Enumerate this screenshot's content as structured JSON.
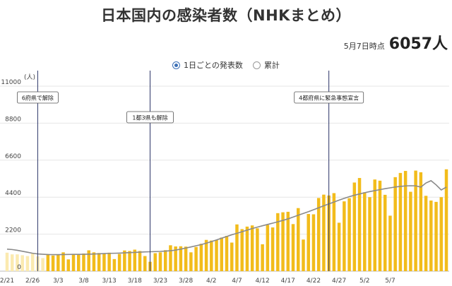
{
  "title": "日本国内の感染者数（NHKまとめ）",
  "stamp": {
    "date": "5月7日時点",
    "count": "6057人"
  },
  "toggle": {
    "daily": "1日ごとの発表数",
    "cumulative": "累計",
    "selected": "daily"
  },
  "colors": {
    "bar": "#f2bc1b",
    "bar_faded": "#fbeab0",
    "avg_line": "#8a8a8a",
    "annotation": "#2b3467"
  },
  "chart_data": {
    "type": "bar",
    "y_unit": "(人)",
    "ylim": [
      0,
      11000
    ],
    "yticks": [
      0,
      2200,
      4400,
      6600,
      8800,
      11000
    ],
    "grid": true,
    "x_ticks": [
      "2/21",
      "2/26",
      "3/3",
      "3/8",
      "3/13",
      "3/18",
      "3/23",
      "3/28",
      "4/2",
      "4/7",
      "4/12",
      "4/17",
      "4/22",
      "4/27",
      "5/2",
      "5/7"
    ],
    "series": [
      {
        "type": "bar",
        "values": [
          1100,
          1000,
          1000,
          950,
          900,
          1050,
          880,
          780,
          1020,
          930,
          1000,
          1120,
          700,
          1030,
          980,
          1050,
          1240,
          1120,
          1080,
          1050,
          1100,
          720,
          1020,
          1230,
          1200,
          1280,
          1200,
          900,
          560,
          1070,
          1120,
          1250,
          1540,
          1470,
          1480,
          1460,
          1120,
          1440,
          1630,
          1860,
          1820,
          1850,
          2000,
          2100,
          1700,
          2780,
          2500,
          2650,
          2720,
          2550,
          1600,
          2750,
          2600,
          3450,
          3500,
          3530,
          2800,
          3750,
          1880,
          3400,
          3380,
          4350,
          4550,
          4500,
          4640,
          2880,
          4150,
          4340,
          5270,
          5540,
          4690,
          4400,
          5450,
          5380,
          4540,
          3300,
          5590,
          5840,
          5960,
          4720,
          5980,
          5880,
          4480,
          4200,
          4120,
          4400,
          6057
        ]
      },
      {
        "type": "line",
        "values": [
          1310,
          1285,
          1240,
          1185,
          1125,
          1065,
          1025,
          1005,
          990,
          985,
          985,
          990,
          995,
          1000,
          1000,
          1005,
          1010,
          1020,
          1030,
          1045,
          1060,
          1065,
          1075,
          1090,
          1105,
          1115,
          1130,
          1145,
          1155,
          1165,
          1175,
          1195,
          1215,
          1255,
          1310,
          1375,
          1440,
          1510,
          1580,
          1665,
          1760,
          1860,
          1960,
          2065,
          2165,
          2250,
          2345,
          2440,
          2535,
          2620,
          2700,
          2780,
          2855,
          2935,
          3020,
          3110,
          3215,
          3325,
          3430,
          3535,
          3650,
          3770,
          3890,
          4000,
          4110,
          4225,
          4330,
          4430,
          4515,
          4590,
          4665,
          4730,
          4790,
          4850,
          4905,
          4955,
          5005,
          5040,
          5070,
          5080,
          5075,
          4995,
          5240,
          5380,
          5130,
          4830,
          5000
        ]
      }
    ],
    "annotations": [
      {
        "text": "6府県で解除",
        "at": "2/27"
      },
      {
        "text": "1都3県も解除",
        "at": "3/21"
      },
      {
        "text": "4都府県に緊急事態宣言",
        "at": "4/25"
      }
    ]
  }
}
